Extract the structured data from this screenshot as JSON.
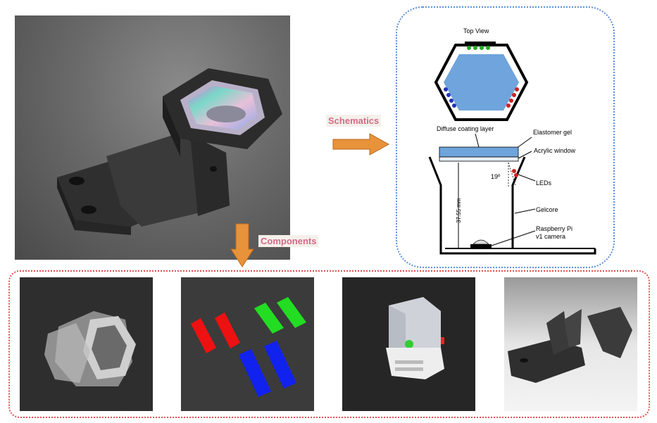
{
  "labels": {
    "schematics": "Schematics",
    "components": "Components"
  },
  "schematic": {
    "top_view": "Top View",
    "diffuse": "Diffuse coating layer",
    "elastomer": "Elastomer gel",
    "acrylic": "Acrylic window",
    "angle": "19º",
    "leds": "LEDs",
    "dimension": "37.55 mm",
    "gelcore": "Gelcore",
    "camera_line1": "Raspberry Pi",
    "camera_line2": "v1 camera"
  },
  "colors": {
    "arrow": "#e8923a",
    "gel_blue": "#6fa4dc",
    "led_red": "#cc2222",
    "led_green": "#22aa22",
    "led_blue": "#2233bb",
    "schematic_border": "#5b8fd6",
    "components_border": "#e05050"
  }
}
